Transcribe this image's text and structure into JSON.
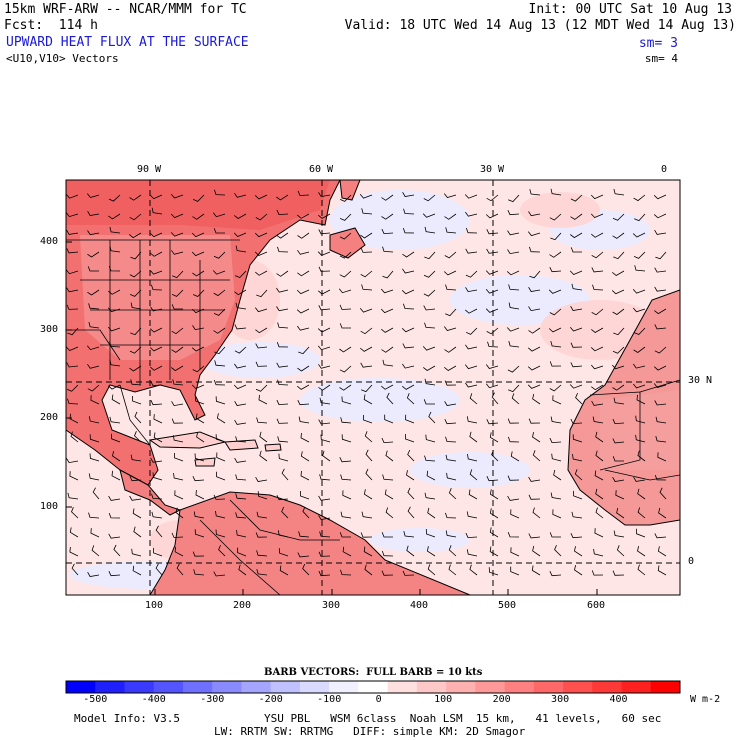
{
  "header": {
    "model_title": "15km WRF-ARW -- NCAR/MMM for TC",
    "forecast": "Fcst:  114 h",
    "init": "Init: 00 UTC Sat 10 Aug 13",
    "valid": "Valid: 18 UTC Wed 14 Aug 13 (12 MDT Wed 14 Aug 13)",
    "field_title": "UPWARD HEAT FLUX AT THE SURFACE",
    "field_sm": "sm= 3",
    "vector_title": "<U10,V10> Vectors",
    "vector_sm": "sm= 4"
  },
  "map": {
    "top_longitude_labels": [
      "90 W",
      "60 W",
      "30 W",
      "0"
    ],
    "right_latitude_labels": [
      "30 N",
      "0"
    ],
    "left_grid_ticks": [
      "400",
      "300",
      "200",
      "100"
    ],
    "bottom_grid_ticks": [
      "100",
      "200",
      "300",
      "400",
      "500",
      "600"
    ]
  },
  "legend": {
    "barb_caption": "BARB VECTORS:  FULL BARB = 10 kts",
    "values": [
      "-500",
      "-400",
      "-300",
      "-200",
      "-100",
      "0",
      "100",
      "200",
      "300",
      "400"
    ],
    "units": "W m-2",
    "colors": [
      "#0000ff",
      "#2020ff",
      "#3a3aff",
      "#5555ff",
      "#7070ff",
      "#8a8aff",
      "#a5a5ff",
      "#c0c0ff",
      "#dadaff",
      "#f0f0ff",
      "#ffffff",
      "#ffe0e0",
      "#ffc8c8",
      "#ffb0b0",
      "#ff9898",
      "#ff8080",
      "#ff6868",
      "#ff5050",
      "#ff3838",
      "#ff2020",
      "#ff0000"
    ]
  },
  "footer": {
    "model_info": "Model Info: V3.5",
    "physics_line1": "YSU PBL   WSM 6class  Noah LSM  15 km,   41 levels,   60 sec",
    "physics_line2": "LW: RRTM SW: RRTMG   DIFF: simple KM: 2D Smagor"
  }
}
